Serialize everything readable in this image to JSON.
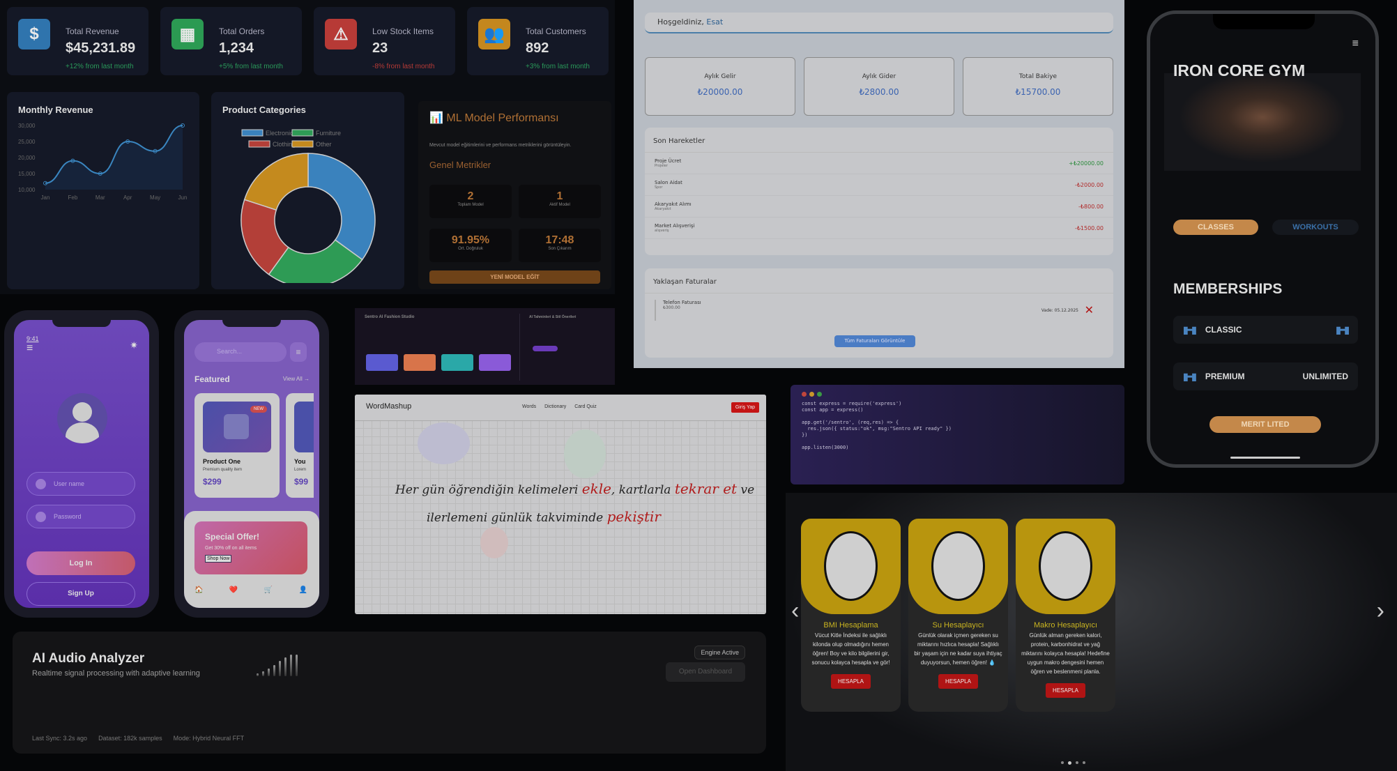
{
  "dashboard": {
    "stats": [
      {
        "icon": "dollar-icon",
        "symbol": "$",
        "label": "Total Revenue",
        "value": "$45,231.89",
        "change": "+12% from last month",
        "color": "#2f74ad",
        "change_color": "#2a9a5a"
      },
      {
        "icon": "boxes-icon",
        "symbol": "▦",
        "label": "Total Orders",
        "value": "1,234",
        "change": "+5% from last month",
        "color": "#2b9a52",
        "change_color": "#2a9a5a"
      },
      {
        "icon": "warning-icon",
        "symbol": "⚠",
        "label": "Low Stock Items",
        "value": "23",
        "change": "-8% from last month",
        "color": "#b73a36",
        "change_color": "#b73a36"
      },
      {
        "icon": "users-icon",
        "symbol": "👥",
        "label": "Total Customers",
        "value": "892",
        "change": "+3% from last month",
        "color": "#c4871e",
        "change_color": "#2a9a5a"
      }
    ],
    "revenue_title": "Monthly Revenue",
    "categories_title": "Product Categories"
  },
  "chart_data": [
    {
      "type": "line",
      "title": "Monthly Revenue",
      "categories": [
        "Jan",
        "Feb",
        "Mar",
        "Apr",
        "May",
        "Jun"
      ],
      "values": [
        12000,
        19000,
        15000,
        25000,
        22000,
        30000
      ],
      "yticks": [
        "30,000",
        "25,000",
        "20,000",
        "15,000",
        "10,000"
      ],
      "ylim": [
        10000,
        30000
      ],
      "color": "#3a86c0"
    },
    {
      "type": "pie",
      "title": "Product Categories",
      "labels": [
        "Electronics",
        "Furniture",
        "Clothing",
        "Other"
      ],
      "values": [
        35,
        25,
        20,
        20
      ],
      "colors": [
        "#3a82bd",
        "#2e9b55",
        "#b33f38",
        "#c48a1e"
      ],
      "legend": "top"
    }
  ],
  "ml": {
    "title": "ML Model Performansı",
    "desc": "Mevcut model eğitimlerini ve performans metriklerini görüntüleyin.",
    "section": "Genel Metrikler",
    "metrics": [
      {
        "value": "2",
        "label": "Toplam Model"
      },
      {
        "value": "1",
        "label": "Aktif Model"
      },
      {
        "value": "91.95%",
        "label": "Ort. Doğruluk"
      },
      {
        "value": "17:48",
        "label": "Son Çıkarım"
      }
    ],
    "button": "YENİ MODEL EĞİT"
  },
  "finance": {
    "welcome": "Hoşgeldiniz,",
    "user": "Esat",
    "boxes": [
      {
        "label": "Aylık Gelir",
        "value": "₺20000.00"
      },
      {
        "label": "Aylık Gider",
        "value": "₺2800.00"
      },
      {
        "label": "Total Bakiye",
        "value": "₺15700.00"
      }
    ],
    "recent_title": "Son Hareketler",
    "transactions": [
      {
        "name": "Proje Ücret",
        "cat": "Projeler",
        "amount": "+₺20000.00",
        "color": "#2a8a3a"
      },
      {
        "name": "Salon Aidat",
        "cat": "Spor",
        "amount": "-₺2000.00",
        "color": "#b02a2a"
      },
      {
        "name": "Akaryakıt Alımı",
        "cat": "Akaryakıt",
        "amount": "-₺800.00",
        "color": "#b02a2a"
      },
      {
        "name": "Market Alışverişi",
        "cat": "alışveriş",
        "amount": "-₺1500.00",
        "color": "#b02a2a"
      }
    ],
    "bills_title": "Yaklaşan Faturalar",
    "bill": {
      "name": "Telefon Faturası",
      "amount": "₺300.00",
      "due": "Vade: 05.12.2025"
    },
    "view_all": "Tüm Faturaları Görüntüle"
  },
  "gym": {
    "title": "IRON CORE GYM",
    "tabs": [
      "CLASSES",
      "WORKOUTS"
    ],
    "memberships_title": "MEMBERSHIPS",
    "memberships": [
      {
        "name": "CLASSIC",
        "right": ""
      },
      {
        "name": "PREMIUM",
        "right": "UNLIMITED"
      }
    ],
    "cta": "MERIT LITED"
  },
  "login": {
    "time": "9:41",
    "username_placeholder": "User name",
    "password_placeholder": "Password",
    "login": "Log In",
    "signup": "Sign Up"
  },
  "shop": {
    "search_placeholder": "Search...",
    "featured": "Featured",
    "view_all": "View All →",
    "badge": "NEW",
    "products": [
      {
        "name": "Product One",
        "desc": "Premium quality item",
        "price": "$299"
      },
      {
        "name": "You",
        "desc": "Lorem",
        "price": "$99"
      }
    ],
    "offer_title": "Special Offer!",
    "offer_desc": "Get 30% off on all items",
    "offer_btn": "Shop Now",
    "nav": [
      "🏠",
      "❤️",
      "🛒",
      "👤"
    ]
  },
  "fashion": {
    "title": "Sentro AI Fashion Studio",
    "right_title": "AI Tahminleri & Stil Önerileri",
    "swatches": [
      "#5a5ad0",
      "#d8744a",
      "#2aa8a8",
      "#8a5ad8"
    ]
  },
  "wordmashup": {
    "logo": "WordMashup",
    "nav": [
      "Words",
      "Dictionary",
      "Card Quiz"
    ],
    "login": "Giriş Yap",
    "line1": [
      "Her gün öğrendiğin kelimeleri ",
      "ekle",
      ",  kartlarla ",
      "tekrar et",
      " ve"
    ],
    "line2": [
      "ilerlemeni günlük takviminde ",
      "pekiştir"
    ]
  },
  "code": {
    "text": "const express = require('express')\nconst app = express()\n\napp.get('/sentro', (req,res) => {\n  res.json({ status:\"ok\", msg:\"Sentro API ready\" })\n})\n\napp.listen(3000)"
  },
  "audio": {
    "title": "AI Audio Analyzer",
    "subtitle": "Realtime signal processing with adaptive learning",
    "badge": "Engine Active",
    "button": "Open Dashboard",
    "meta": [
      "Last Sync: 3.2s ago",
      "Dataset: 182k samples",
      "Mode: Hybrid Neural FFT"
    ],
    "bars": [
      0.1,
      0.2,
      0.3,
      0.45,
      0.6,
      0.75,
      0.85,
      0.85
    ]
  },
  "calc": {
    "cards": [
      {
        "title": "BMI Hesaplama",
        "text": "Vücut Kitle İndeksi ile sağlıklı kilonda olup olmadığını hemen öğren! Boy ve kilo bilgilerini gir, sonucu kolayca hesapla ve gör!",
        "button": "HESAPLA"
      },
      {
        "title": "Su Hesaplayıcı",
        "text": "Günlük olarak içmen gereken su miktarını hızlıca hesapla! Sağlıklı bir yaşam için ne kadar suya ihtiyaç duyuyorsun, hemen öğren! 💧",
        "button": "HESAPLA"
      },
      {
        "title": "Makro Hesaplayıcı",
        "text": "Günlük alman gereken kalori, protein, karbonhidrat ve yağ miktarını kolayca hesapla! Hedefine uygun makro dengesini hemen öğren ve beslenmeni planla.",
        "button": "HESAPLA"
      }
    ],
    "prev": "‹",
    "next": "›"
  }
}
